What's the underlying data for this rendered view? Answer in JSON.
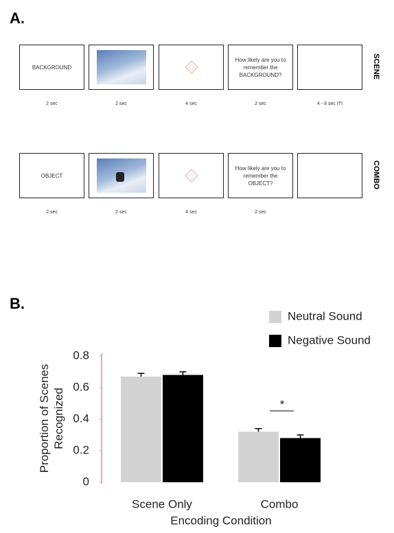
{
  "panel_a": {
    "label": "A.",
    "rows": [
      {
        "label": "SCENE",
        "frames": [
          "BACKGROUND",
          null,
          null,
          "How likely are you to remember the BACKGROUND?",
          null
        ],
        "durations": [
          "2 sec",
          "2 sec",
          "4 sec",
          "2 sec",
          "4 - 8 sec ITI"
        ]
      },
      {
        "label": "COMBO",
        "frames": [
          "OBJECT",
          null,
          null,
          "How likely are you to remember the OBJECT?",
          null
        ],
        "durations": [
          "2 sec",
          "2 sec",
          "4 sec",
          "2 sec"
        ]
      }
    ]
  },
  "panel_b": {
    "label": "B."
  },
  "chart_data": {
    "type": "bar",
    "categories": [
      "Scene Only",
      "Combo"
    ],
    "series": [
      {
        "name": "Neutral Sound",
        "color": "#d3d3d3",
        "values": [
          0.67,
          0.32
        ],
        "errors": [
          0.02,
          0.02
        ]
      },
      {
        "name": "Negative Sound",
        "color": "#000000",
        "values": [
          0.68,
          0.28
        ],
        "errors": [
          0.02,
          0.02
        ]
      }
    ],
    "ylabel": [
      "Proportion of Scenes",
      "Recognized"
    ],
    "xlabel": "Encoding Condition",
    "annotation": "*",
    "ylim": [
      0,
      0.8
    ],
    "yticks": [
      0,
      0.2,
      0.4,
      0.6,
      0.8
    ],
    "axis_color": "#ef8a8a",
    "grid": false,
    "legend": "top-right"
  }
}
